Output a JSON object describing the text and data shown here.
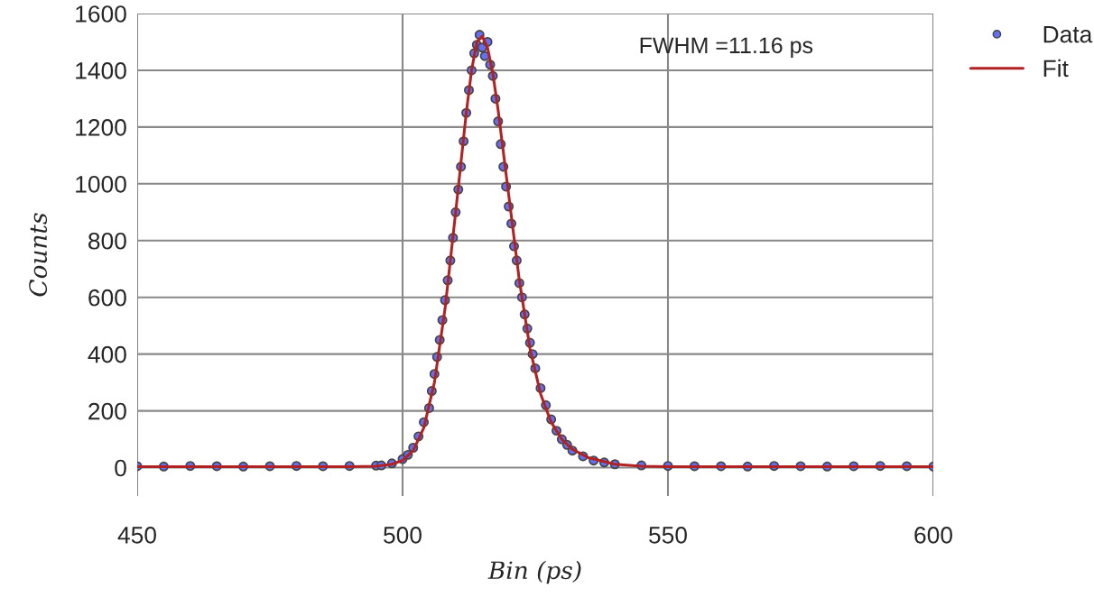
{
  "chart_data": {
    "type": "scatter",
    "xlabel": "Bin (ps)",
    "ylabel": "Counts",
    "xlim": [
      450,
      600
    ],
    "ylim": [
      -100,
      1600
    ],
    "xticks": [
      450,
      500,
      550,
      600
    ],
    "yticks": [
      0,
      200,
      400,
      600,
      800,
      1000,
      1200,
      1400,
      1600
    ],
    "grid": true,
    "legend": "top right",
    "annotations": [
      "FWHM =11.16 ps"
    ],
    "series": [
      {
        "name": "Data",
        "color": "#6470f0",
        "marker": "circle",
        "x": [
          450,
          455,
          460,
          465,
          470,
          475,
          480,
          485,
          490,
          495,
          496,
          498,
          500,
          501,
          502,
          503,
          504,
          505,
          505.5,
          506,
          506.5,
          507,
          507.5,
          508,
          508.5,
          509,
          509.5,
          510,
          510.5,
          511,
          511.5,
          512,
          512.5,
          513,
          513.5,
          514,
          514.5,
          515,
          515.5,
          516,
          516.5,
          517,
          517.5,
          518,
          518.5,
          519,
          519.5,
          520,
          520.5,
          521,
          521.5,
          522,
          522.5,
          523,
          523.5,
          524,
          524.5,
          525,
          526,
          527,
          528,
          529,
          530,
          531,
          532,
          534,
          536,
          538,
          540,
          545,
          550,
          555,
          560,
          565,
          570,
          575,
          580,
          585,
          590,
          595,
          600
        ],
        "values": [
          5,
          4,
          6,
          5,
          4,
          5,
          6,
          5,
          6,
          7,
          8,
          15,
          30,
          45,
          70,
          110,
          160,
          210,
          270,
          330,
          390,
          450,
          520,
          590,
          660,
          730,
          810,
          900,
          980,
          1060,
          1150,
          1250,
          1330,
          1400,
          1460,
          1490,
          1525,
          1480,
          1450,
          1500,
          1420,
          1380,
          1300,
          1220,
          1140,
          1060,
          990,
          920,
          860,
          780,
          730,
          650,
          600,
          540,
          490,
          440,
          400,
          350,
          280,
          220,
          170,
          130,
          100,
          80,
          60,
          40,
          25,
          18,
          12,
          8,
          6,
          5,
          5,
          4,
          6,
          5,
          4,
          5,
          6,
          5,
          4
        ]
      },
      {
        "name": "Fit",
        "type": "line",
        "color": "#b22222",
        "marker": "none",
        "line_style": "solid",
        "x": [
          450,
          490,
          495,
          498,
          500,
          502,
          504,
          506,
          508,
          510,
          512,
          513,
          514,
          515,
          516,
          517,
          518,
          520,
          522,
          524,
          526,
          528,
          530,
          532,
          535,
          540,
          545,
          550,
          600
        ],
        "values": [
          3,
          3,
          5,
          12,
          25,
          60,
          140,
          300,
          560,
          900,
          1250,
          1400,
          1500,
          1520,
          1480,
          1390,
          1260,
          960,
          660,
          420,
          260,
          160,
          100,
          65,
          35,
          12,
          5,
          3,
          3
        ]
      }
    ]
  }
}
